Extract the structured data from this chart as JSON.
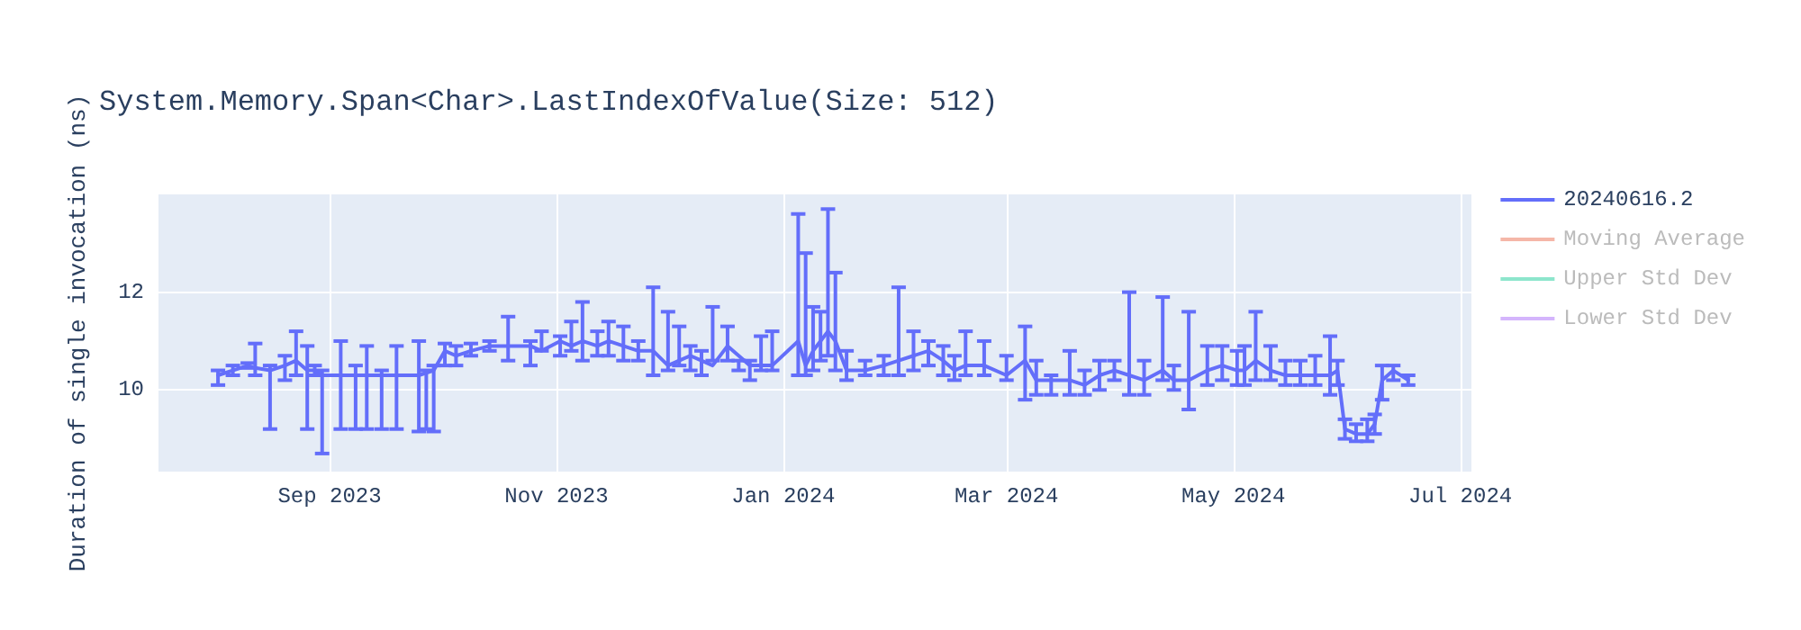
{
  "chart_data": {
    "type": "line",
    "title": "System.Memory.Span<Char>.LastIndexOfValue(Size: 512)",
    "ylabel": "Duration of single invocation (ns)",
    "x": [
      "2023-08-02",
      "2023-08-06",
      "2023-08-10",
      "2023-08-12",
      "2023-08-16",
      "2023-08-20",
      "2023-08-23",
      "2023-08-26",
      "2023-08-28",
      "2023-08-30",
      "2023-09-04",
      "2023-09-08",
      "2023-09-11",
      "2023-09-15",
      "2023-09-19",
      "2023-09-25",
      "2023-09-27",
      "2023-09-29",
      "2023-10-02",
      "2023-10-05",
      "2023-10-09",
      "2023-10-14",
      "2023-10-19",
      "2023-10-25",
      "2023-10-28",
      "2023-11-02",
      "2023-11-05",
      "2023-11-08",
      "2023-11-12",
      "2023-11-15",
      "2023-11-19",
      "2023-11-23",
      "2023-11-27",
      "2023-12-01",
      "2023-12-04",
      "2023-12-07",
      "2023-12-10",
      "2023-12-13",
      "2023-12-17",
      "2023-12-20",
      "2023-12-23",
      "2023-12-26",
      "2023-12-29",
      "2024-01-05",
      "2024-01-07",
      "2024-01-09",
      "2024-01-11",
      "2024-01-13",
      "2024-01-15",
      "2024-01-18",
      "2024-01-23",
      "2024-01-28",
      "2024-02-01",
      "2024-02-05",
      "2024-02-09",
      "2024-02-13",
      "2024-02-16",
      "2024-02-19",
      "2024-02-24",
      "2024-03-01",
      "2024-03-06",
      "2024-03-09",
      "2024-03-13",
      "2024-03-18",
      "2024-03-22",
      "2024-03-26",
      "2024-03-30",
      "2024-04-03",
      "2024-04-07",
      "2024-04-12",
      "2024-04-15",
      "2024-04-19",
      "2024-04-24",
      "2024-04-28",
      "2024-05-02",
      "2024-05-04",
      "2024-05-07",
      "2024-05-11",
      "2024-05-15",
      "2024-05-19",
      "2024-05-23",
      "2024-05-27",
      "2024-05-29",
      "2024-05-31",
      "2024-06-03",
      "2024-06-06",
      "2024-06-08",
      "2024-06-10",
      "2024-06-13",
      "2024-06-17"
    ],
    "xlim": [
      "2023-07-17",
      "2024-07-04"
    ],
    "xticks": [
      {
        "value": "2023-09-01",
        "label": "Sep 2023"
      },
      {
        "value": "2023-11-01",
        "label": "Nov 2023"
      },
      {
        "value": "2024-01-01",
        "label": "Jan 2024"
      },
      {
        "value": "2024-03-01",
        "label": "Mar 2024"
      },
      {
        "value": "2024-05-01",
        "label": "May 2024"
      },
      {
        "value": "2024-07-01",
        "label": "Jul 2024"
      }
    ],
    "ylim": [
      8.33,
      14
    ],
    "yticks": [
      10,
      12
    ],
    "grid": true,
    "legend": "top right",
    "marker": "none",
    "line_style": "solid",
    "series": [
      {
        "name": "20240616.2",
        "color": "#636efa",
        "values": [
          10.3,
          10.4,
          10.5,
          10.45,
          10.4,
          10.5,
          10.6,
          10.4,
          10.4,
          10.3,
          10.3,
          10.3,
          10.3,
          10.3,
          10.3,
          10.3,
          10.35,
          10.4,
          10.8,
          10.7,
          10.8,
          10.9,
          10.9,
          10.9,
          10.8,
          11.0,
          10.9,
          11.0,
          10.9,
          11.0,
          10.9,
          10.8,
          10.8,
          10.5,
          10.6,
          10.7,
          10.6,
          10.5,
          10.9,
          10.7,
          10.5,
          10.5,
          10.5,
          11.0,
          10.5,
          10.8,
          11.0,
          11.2,
          11.0,
          10.4,
          10.4,
          10.5,
          10.6,
          10.7,
          10.8,
          10.6,
          10.4,
          10.5,
          10.5,
          10.3,
          10.6,
          10.2,
          10.2,
          10.2,
          10.1,
          10.3,
          10.4,
          10.3,
          10.2,
          10.4,
          10.2,
          10.2,
          10.4,
          10.5,
          10.4,
          10.4,
          10.6,
          10.4,
          10.3,
          10.3,
          10.3,
          10.3,
          10.4,
          9.2,
          9.1,
          9.1,
          9.3,
          10.2,
          10.4,
          10.2
        ],
        "errors": [
          [
            10.1,
            10.4
          ],
          [
            10.3,
            10.5
          ],
          [
            10.45,
            10.55
          ],
          [
            10.3,
            10.95
          ],
          [
            9.2,
            10.5
          ],
          [
            10.2,
            10.7
          ],
          [
            10.3,
            11.2
          ],
          [
            9.2,
            10.9
          ],
          [
            10.3,
            10.5
          ],
          [
            8.7,
            10.4
          ],
          [
            9.2,
            11.0
          ],
          [
            9.2,
            10.5
          ],
          [
            9.2,
            10.9
          ],
          [
            9.2,
            10.4
          ],
          [
            9.2,
            10.9
          ],
          [
            9.15,
            11.0
          ],
          [
            9.2,
            10.4
          ],
          [
            9.15,
            10.5
          ],
          [
            10.5,
            10.95
          ],
          [
            10.5,
            10.9
          ],
          [
            10.7,
            10.95
          ],
          [
            10.8,
            11.0
          ],
          [
            10.6,
            11.5
          ],
          [
            10.5,
            11.0
          ],
          [
            10.8,
            11.2
          ],
          [
            10.7,
            11.1
          ],
          [
            10.8,
            11.4
          ],
          [
            10.6,
            11.8
          ],
          [
            10.7,
            11.2
          ],
          [
            10.7,
            11.4
          ],
          [
            10.6,
            11.3
          ],
          [
            10.6,
            11.0
          ],
          [
            10.3,
            12.1
          ],
          [
            10.4,
            11.6
          ],
          [
            10.5,
            11.3
          ],
          [
            10.4,
            10.9
          ],
          [
            10.3,
            10.8
          ],
          [
            10.6,
            11.7
          ],
          [
            10.6,
            11.3
          ],
          [
            10.4,
            10.6
          ],
          [
            10.2,
            10.6
          ],
          [
            10.4,
            11.1
          ],
          [
            10.4,
            11.2
          ],
          [
            10.3,
            13.6
          ],
          [
            10.3,
            12.8
          ],
          [
            10.4,
            11.7
          ],
          [
            10.6,
            11.6
          ],
          [
            10.7,
            13.7
          ],
          [
            10.4,
            12.4
          ],
          [
            10.2,
            10.8
          ],
          [
            10.3,
            10.6
          ],
          [
            10.3,
            10.7
          ],
          [
            10.3,
            12.1
          ],
          [
            10.4,
            11.2
          ],
          [
            10.5,
            11.0
          ],
          [
            10.3,
            10.9
          ],
          [
            10.2,
            10.7
          ],
          [
            10.3,
            11.2
          ],
          [
            10.3,
            11.0
          ],
          [
            10.2,
            10.7
          ],
          [
            9.8,
            11.3
          ],
          [
            9.9,
            10.6
          ],
          [
            9.9,
            10.3
          ],
          [
            9.9,
            10.8
          ],
          [
            9.9,
            10.4
          ],
          [
            10.0,
            10.6
          ],
          [
            10.2,
            10.6
          ],
          [
            9.9,
            12.0
          ],
          [
            9.9,
            10.6
          ],
          [
            10.2,
            11.9
          ],
          [
            10.0,
            10.5
          ],
          [
            9.6,
            11.6
          ],
          [
            10.1,
            10.9
          ],
          [
            10.2,
            10.9
          ],
          [
            10.1,
            10.8
          ],
          [
            10.1,
            10.9
          ],
          [
            10.2,
            11.6
          ],
          [
            10.2,
            10.9
          ],
          [
            10.1,
            10.6
          ],
          [
            10.1,
            10.6
          ],
          [
            10.1,
            10.7
          ],
          [
            9.9,
            11.1
          ],
          [
            10.1,
            10.6
          ],
          [
            9.0,
            9.4
          ],
          [
            8.95,
            9.3
          ],
          [
            8.95,
            9.4
          ],
          [
            9.1,
            9.5
          ],
          [
            9.8,
            10.5
          ],
          [
            10.2,
            10.5
          ],
          [
            10.1,
            10.3
          ]
        ]
      },
      {
        "name": "Moving Average",
        "color": "#f5b7a8",
        "values": [
          null,
          null,
          null,
          null,
          null,
          null,
          null,
          null,
          null,
          null,
          null,
          null,
          null,
          null,
          null,
          null,
          null,
          null,
          null,
          null,
          null,
          null,
          null,
          null,
          null,
          null,
          null,
          null,
          null,
          null,
          null,
          null,
          null,
          null,
          null,
          null,
          null,
          null,
          null,
          null,
          null,
          null,
          null,
          null,
          null,
          null,
          null,
          null,
          null,
          null,
          null,
          null,
          null,
          null,
          null,
          null,
          null,
          null,
          null,
          null,
          null,
          null,
          null,
          null,
          null,
          null,
          null,
          null,
          null,
          null,
          null,
          null,
          null,
          null,
          null,
          null,
          null,
          null,
          null,
          null,
          null,
          null,
          null,
          null,
          null,
          null,
          null,
          null,
          null,
          null
        ]
      },
      {
        "name": "Upper Std Dev",
        "color": "#8de6cc",
        "values": [
          null,
          null,
          null,
          null,
          null,
          null,
          null,
          null,
          null,
          null,
          null,
          null,
          null,
          null,
          null,
          null,
          null,
          null,
          null,
          null,
          null,
          null,
          null,
          null,
          null,
          null,
          null,
          null,
          null,
          null,
          null,
          null,
          null,
          null,
          null,
          null,
          null,
          null,
          null,
          null,
          null,
          null,
          null,
          null,
          null,
          null,
          null,
          null,
          null,
          null,
          null,
          null,
          null,
          null,
          null,
          null,
          null,
          null,
          null,
          null,
          null,
          null,
          null,
          null,
          null,
          null,
          null,
          null,
          null,
          null,
          null,
          null,
          null,
          null,
          null,
          null,
          null,
          null,
          null,
          null,
          null,
          null,
          null,
          null,
          null,
          null,
          null,
          null,
          null,
          null
        ]
      },
      {
        "name": "Lower Std Dev",
        "color": "#d4b5fc",
        "values": [
          null,
          null,
          null,
          null,
          null,
          null,
          null,
          null,
          null,
          null,
          null,
          null,
          null,
          null,
          null,
          null,
          null,
          null,
          null,
          null,
          null,
          null,
          null,
          null,
          null,
          null,
          null,
          null,
          null,
          null,
          null,
          null,
          null,
          null,
          null,
          null,
          null,
          null,
          null,
          null,
          null,
          null,
          null,
          null,
          null,
          null,
          null,
          null,
          null,
          null,
          null,
          null,
          null,
          null,
          null,
          null,
          null,
          null,
          null,
          null,
          null,
          null,
          null,
          null,
          null,
          null,
          null,
          null,
          null,
          null,
          null,
          null,
          null,
          null,
          null,
          null,
          null,
          null,
          null,
          null,
          null,
          null,
          null,
          null,
          null,
          null,
          null,
          null,
          null,
          null
        ]
      }
    ]
  }
}
